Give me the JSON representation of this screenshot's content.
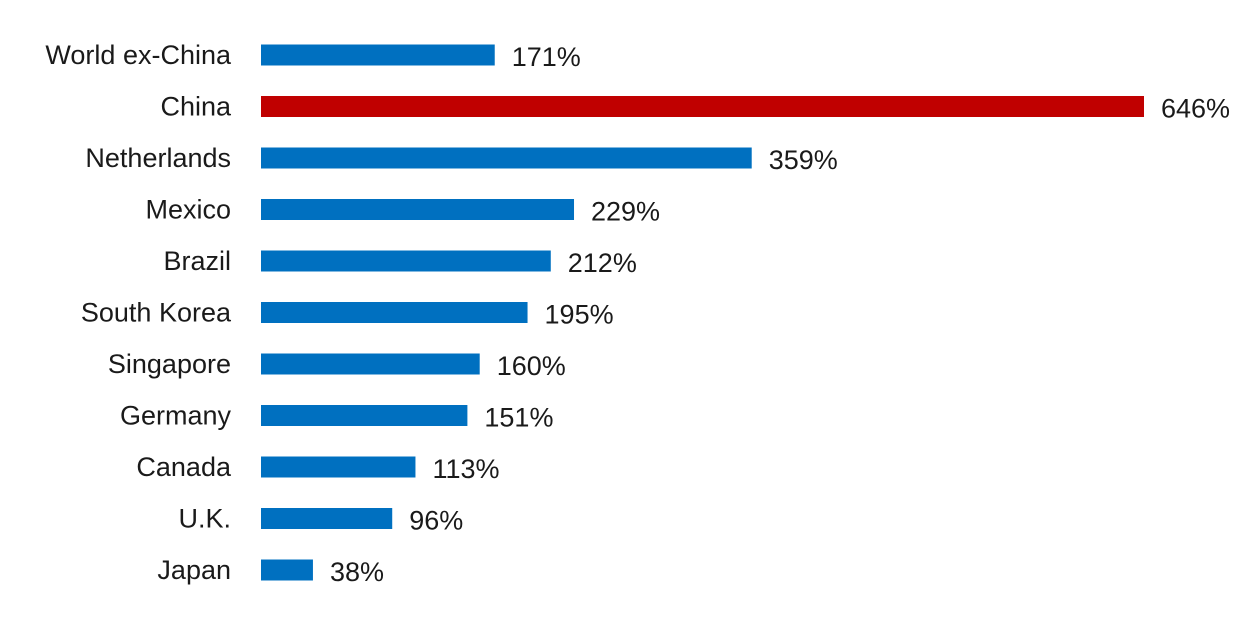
{
  "chart_data": {
    "type": "bar",
    "orientation": "horizontal",
    "categories": [
      "World ex-China",
      "China",
      "Netherlands",
      "Mexico",
      "Brazil",
      "South Korea",
      "Singapore",
      "Germany",
      "Canada",
      "U.K.",
      "Japan"
    ],
    "values": [
      171,
      646,
      359,
      229,
      212,
      195,
      160,
      151,
      113,
      96,
      38
    ],
    "value_labels": [
      "171%",
      "646%",
      "359%",
      "229%",
      "212%",
      "195%",
      "160%",
      "151%",
      "113%",
      "96%",
      "38%"
    ],
    "unit": "%",
    "xlim": [
      0,
      646
    ],
    "grid": false,
    "legend": "none",
    "colors": {
      "default": "#0070C0",
      "highlight": "#C00000"
    },
    "highlight_category": "China"
  }
}
